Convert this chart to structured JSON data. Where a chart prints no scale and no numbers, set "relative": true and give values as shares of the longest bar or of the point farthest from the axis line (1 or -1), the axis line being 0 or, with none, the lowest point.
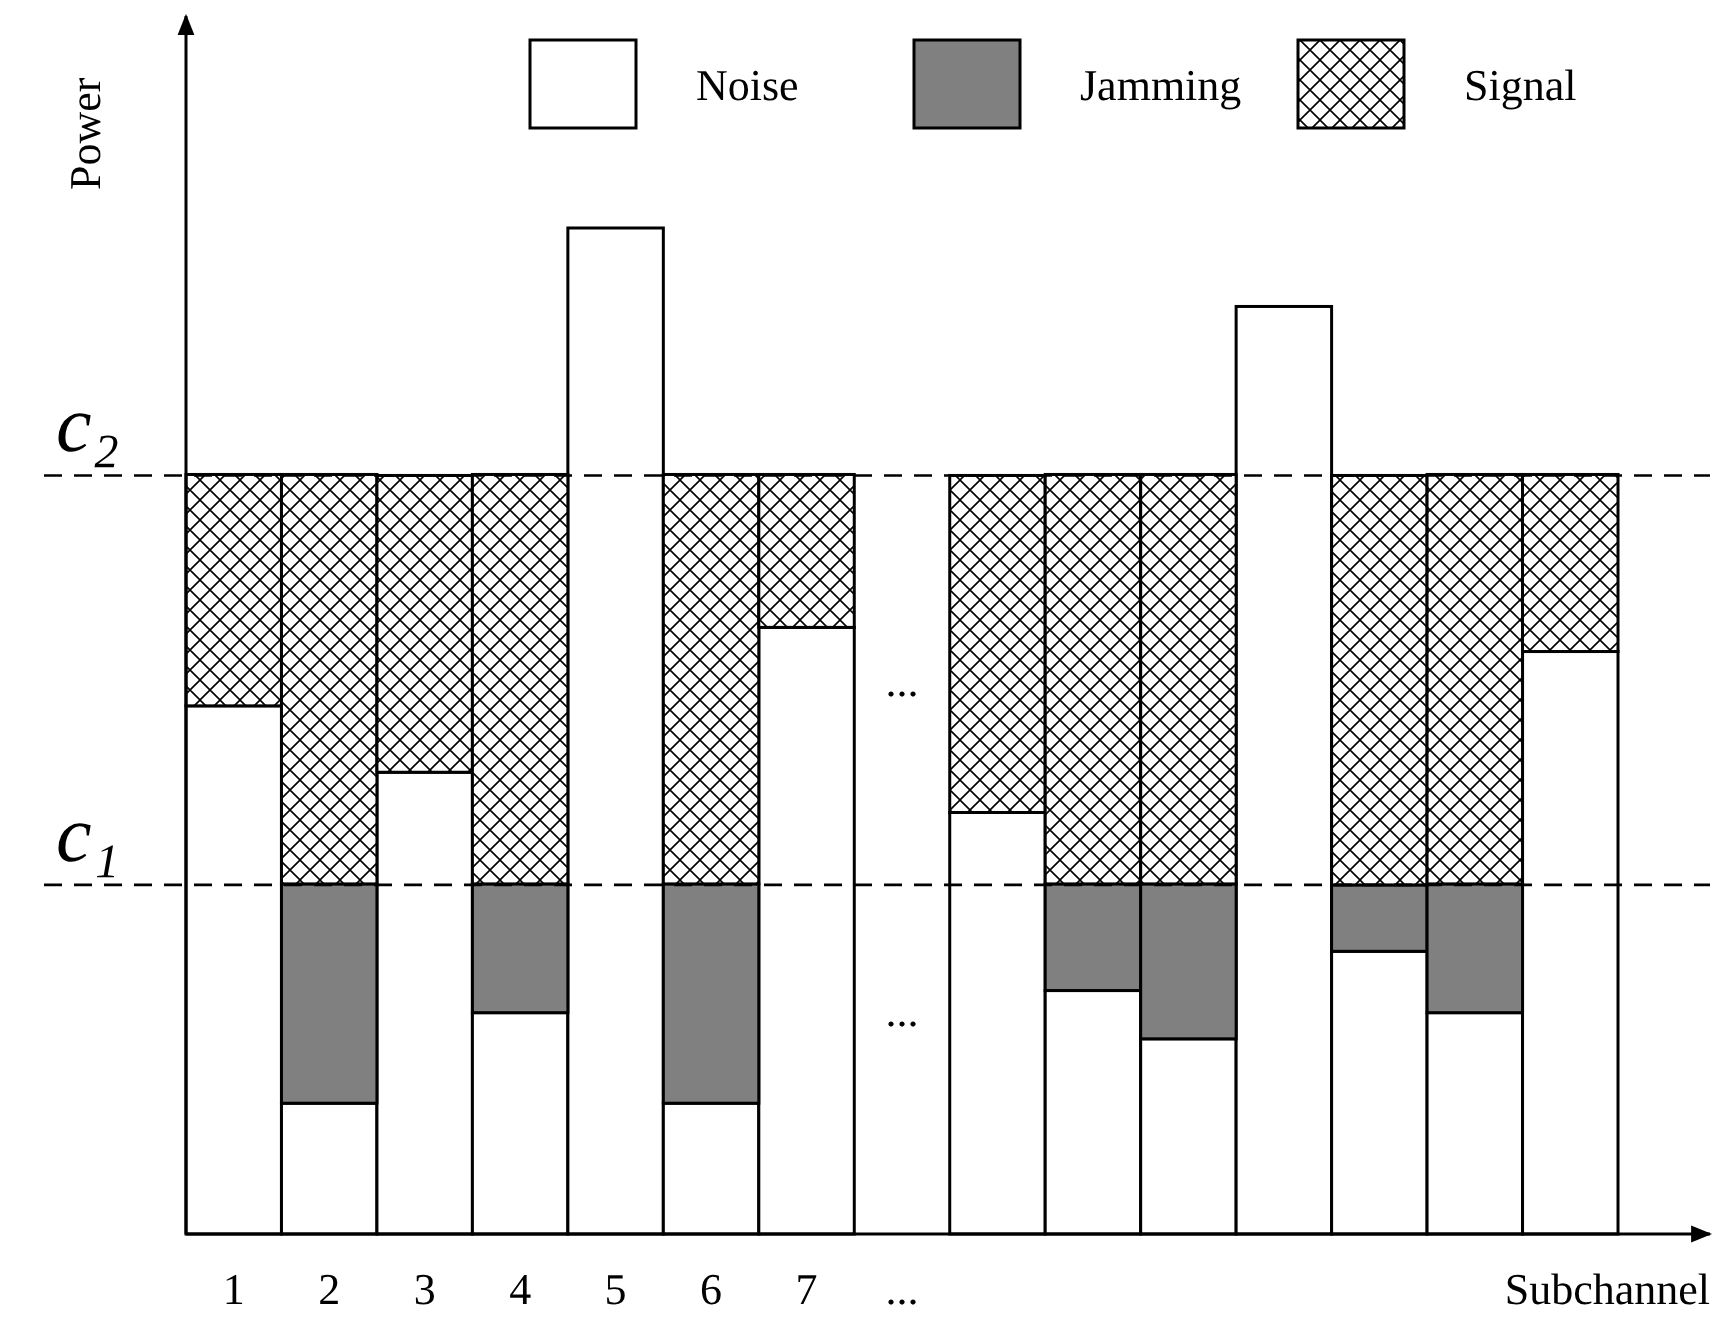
{
  "chart_data": {
    "type": "bar",
    "stacked": true,
    "relative": true,
    "xlabel": "Subchannel",
    "ylabel": "Power",
    "categories": [
      "1",
      "2",
      "3",
      "4",
      "5",
      "6",
      "7",
      "...",
      null,
      null,
      null,
      null,
      null,
      null,
      null
    ],
    "series": [
      {
        "name": "Noise",
        "color": "#ffffff",
        "values": [
          0.525,
          0.13,
          0.459,
          0.22,
          1,
          0.13,
          0.603,
          null,
          0.419,
          0.242,
          0.194,
          0.922,
          0.281,
          0.22,
          0.579
        ]
      },
      {
        "name": "Jamming",
        "color": "#808080",
        "values": [
          0,
          0.218,
          0,
          0.128,
          0,
          0.218,
          0,
          null,
          0,
          0.106,
          0.154,
          0,
          0.066,
          0.128,
          0
        ]
      },
      {
        "name": "Signal",
        "color": "#000000",
        "values": [
          0.23,
          0.407,
          0.295,
          0.407,
          0,
          0.407,
          0.152,
          null,
          0.335,
          0.407,
          0.407,
          0,
          0.407,
          0.407,
          0.176
        ]
      }
    ],
    "ref_lines": [
      {
        "axis": "y",
        "value": 0.754,
        "label": "c₂",
        "line_style": "dashed",
        "color": "#000000"
      },
      {
        "axis": "y",
        "value": 0.347,
        "label": "c₁",
        "line_style": "dashed",
        "color": "#000000"
      }
    ],
    "annotations": [
      "...",
      "..."
    ],
    "legend": "top right"
  }
}
